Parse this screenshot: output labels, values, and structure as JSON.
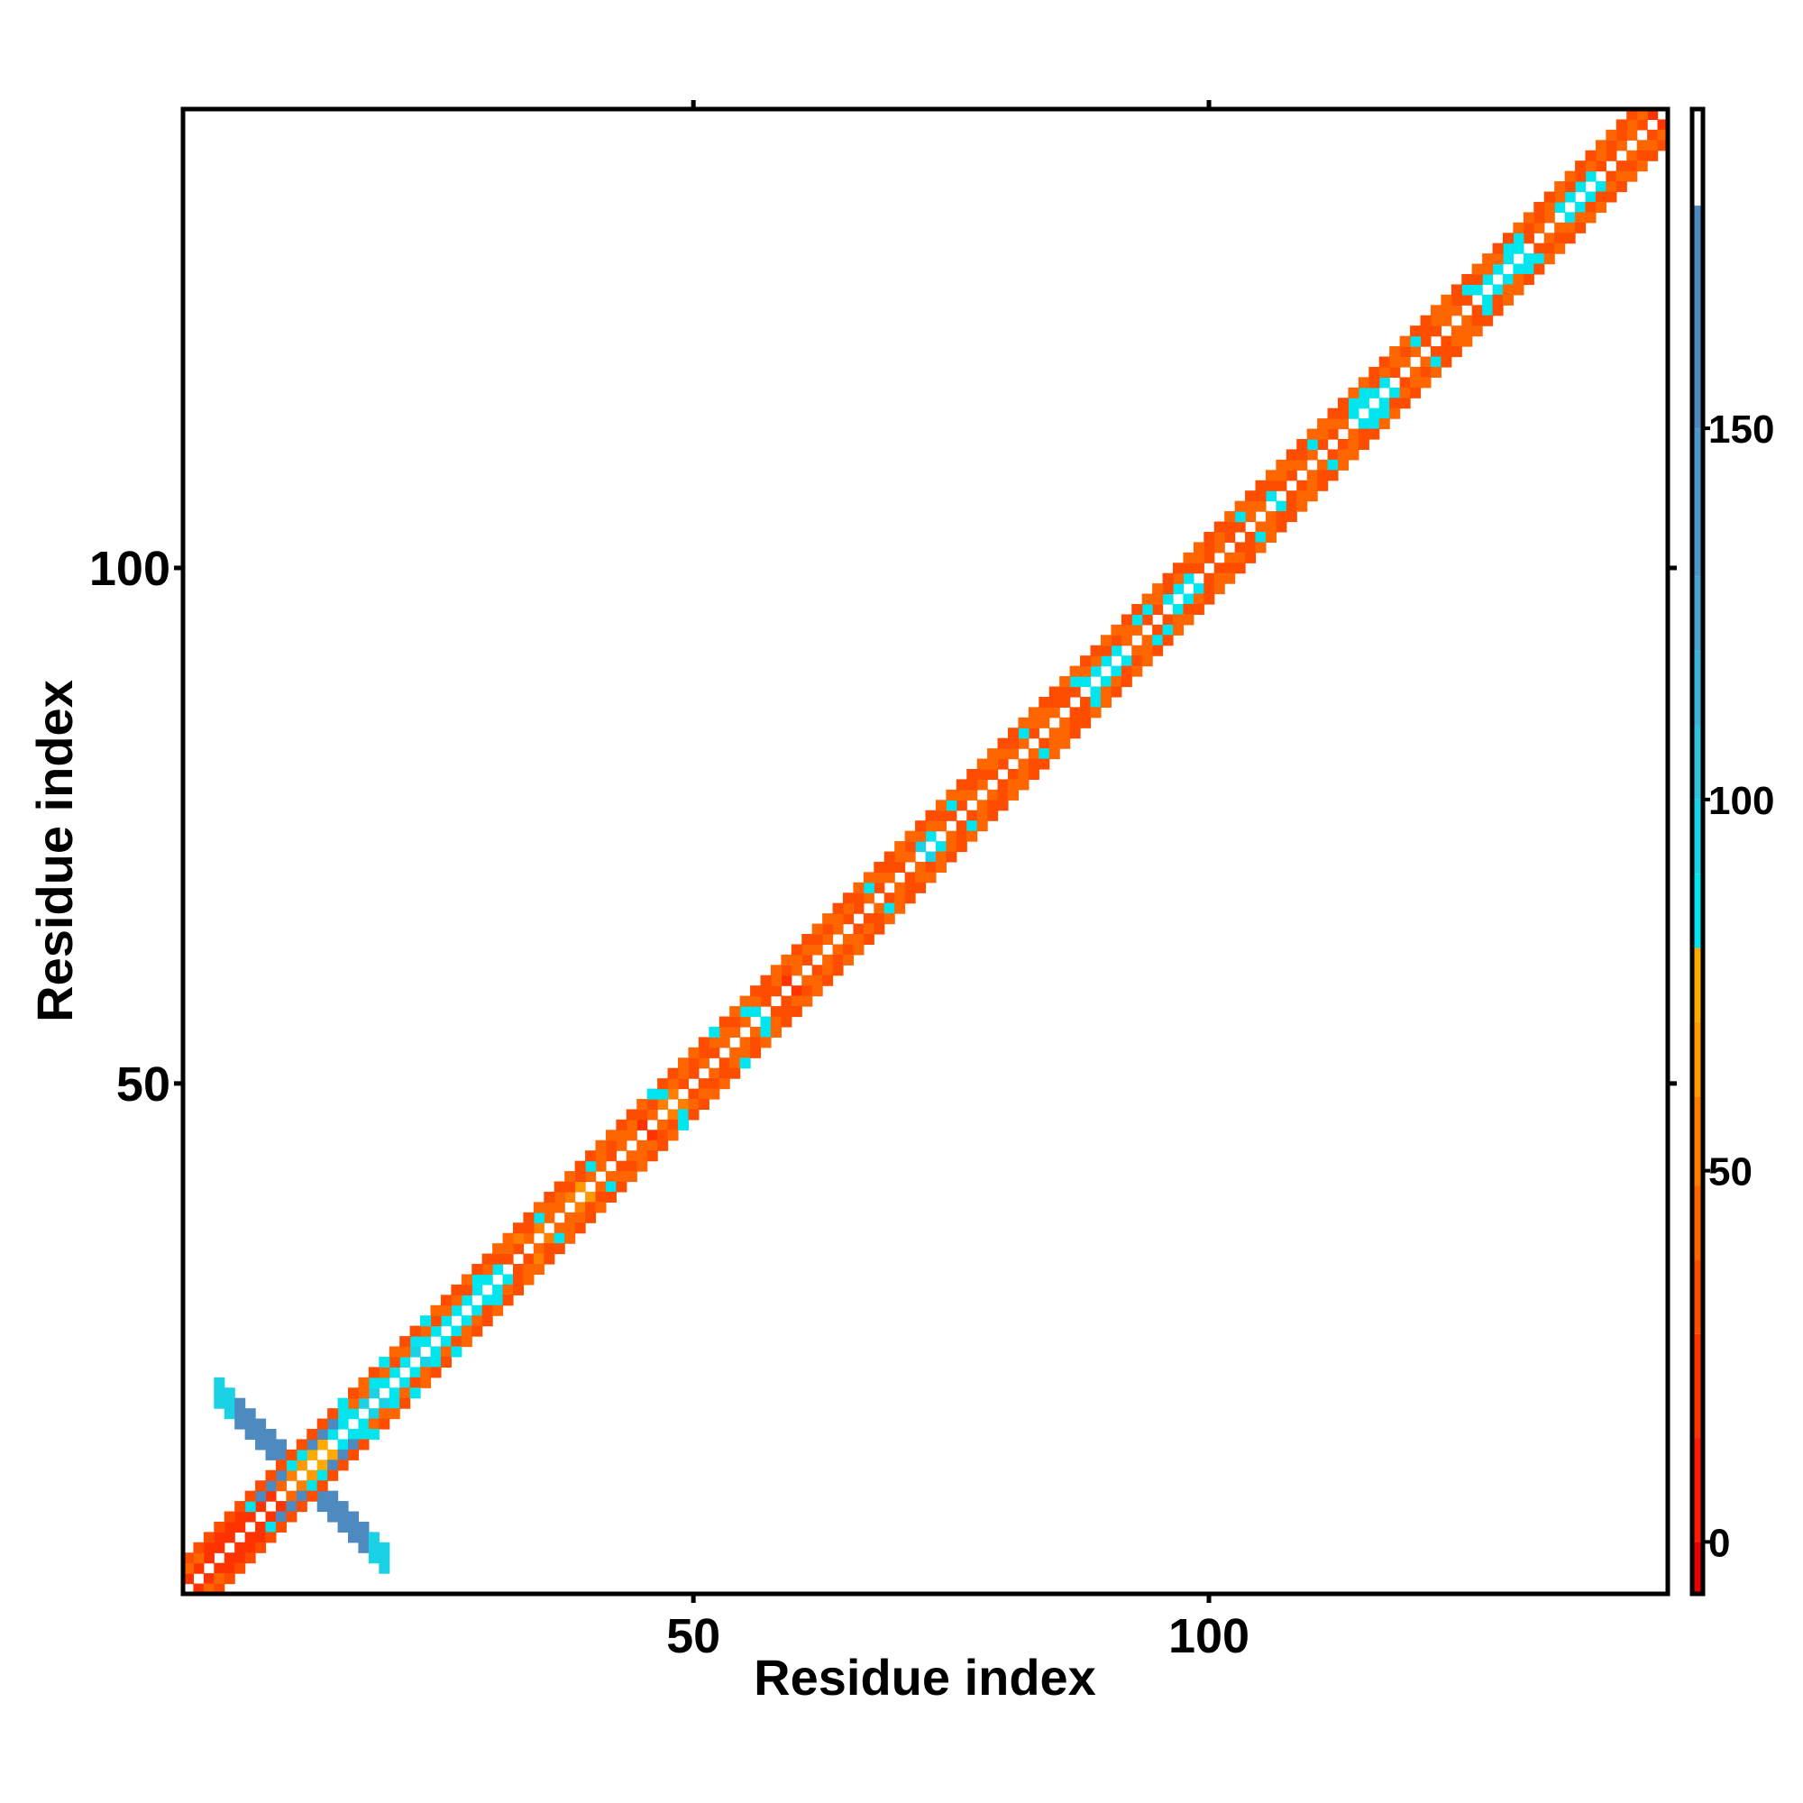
{
  "chart_data": {
    "type": "heatmap",
    "title": "",
    "xlabel": "Residue index",
    "ylabel": "Residue index",
    "xlim": [
      1,
      144
    ],
    "ylim": [
      1,
      144
    ],
    "xticks": [
      50,
      100
    ],
    "yticks": [
      50,
      100
    ],
    "grid": false,
    "matrix": "symmetric contact map; cells within 3 residues of the diagonal are colored, diagonal itself blank; extra off-diagonal cross block near residues 4-20",
    "band_values": {
      "offset_1": [
        14,
        14,
        14,
        14,
        14,
        14,
        14,
        18,
        24,
        38,
        50,
        64,
        70,
        74,
        80,
        84,
        88,
        92,
        90,
        86,
        84,
        88,
        90,
        86,
        84,
        86,
        84,
        88,
        86,
        84,
        82,
        30,
        28,
        44,
        50,
        38,
        44,
        52,
        60,
        42,
        38,
        30,
        46,
        40,
        22,
        40,
        52,
        48,
        36,
        30,
        44,
        36,
        38,
        46,
        40,
        86,
        32,
        36,
        22,
        46,
        36,
        40,
        38,
        44,
        36,
        30,
        40,
        36,
        44,
        28,
        42,
        90,
        86,
        40,
        36,
        30,
        44,
        40,
        36,
        30,
        44,
        40,
        30,
        44,
        40,
        36,
        30,
        86,
        88,
        86,
        84,
        44,
        40,
        36,
        30,
        86,
        88,
        86,
        36,
        30,
        44,
        36,
        30,
        44,
        40,
        86,
        36,
        30,
        44,
        40,
        36,
        30,
        44,
        86,
        88,
        84,
        86,
        36,
        40,
        44,
        30,
        36,
        44,
        40,
        30,
        86,
        88,
        86,
        84,
        86,
        30,
        44,
        40,
        86,
        88,
        86,
        84,
        36,
        30,
        44,
        40,
        36
      ],
      "offset_2": [
        44,
        44,
        14,
        14,
        14,
        14,
        86,
        150,
        150,
        150,
        86,
        86,
        150,
        150,
        150,
        86,
        44,
        40,
        86,
        40,
        36,
        44,
        86,
        40,
        36,
        44,
        40,
        30,
        86,
        40,
        36,
        44,
        50,
        36,
        86,
        40,
        44,
        30,
        36,
        86,
        40,
        36,
        44,
        40,
        36,
        30,
        86,
        40,
        44,
        36,
        30,
        40,
        44,
        36,
        86,
        40,
        30,
        44,
        36,
        40,
        44,
        36,
        30,
        40,
        44,
        36,
        86,
        40,
        30,
        44,
        36,
        40,
        44,
        30,
        86,
        40,
        36,
        30,
        44,
        40,
        36,
        86,
        44,
        40,
        30,
        36,
        86,
        40,
        44,
        36,
        30,
        40,
        86,
        86,
        40,
        36,
        44,
        30,
        40,
        36,
        44,
        30,
        86,
        40,
        36,
        30,
        44,
        40,
        36,
        86,
        44,
        40,
        30,
        86,
        86,
        36,
        40,
        44,
        30,
        86,
        36,
        40,
        44,
        30,
        86,
        36,
        40,
        44,
        86,
        86,
        30,
        36,
        40,
        44,
        30,
        36,
        40,
        44,
        30,
        36,
        40,
        44
      ],
      "offset_3": [
        30,
        30,
        30,
        30,
        30,
        30,
        30,
        30,
        30,
        30,
        30,
        30,
        30,
        30,
        30,
        86,
        30,
        40,
        36,
        86,
        40,
        30,
        36,
        86,
        40,
        30,
        36,
        40,
        30,
        36,
        40,
        44,
        30,
        36,
        40,
        30,
        36,
        44,
        30,
        36,
        40,
        44,
        30,
        36,
        40,
        86,
        36,
        30,
        44,
        40,
        36,
        86,
        30,
        40,
        44,
        36,
        30,
        40,
        44,
        36,
        30,
        40,
        44,
        36,
        30,
        40,
        44,
        36,
        30,
        40,
        44,
        36,
        30,
        40,
        44,
        36,
        30,
        40,
        44,
        36,
        30,
        40,
        44,
        36,
        30,
        40,
        44,
        36,
        30,
        40,
        44,
        36,
        30,
        40,
        44,
        36,
        30,
        40,
        44,
        36,
        30,
        40,
        44,
        36,
        30,
        40,
        44,
        36,
        30,
        40,
        44,
        36,
        30,
        40,
        44,
        36,
        30,
        40,
        44,
        36,
        30,
        40,
        44,
        36,
        30,
        40,
        44,
        36,
        30,
        40,
        44,
        36,
        30,
        40,
        44,
        36,
        30,
        40,
        44,
        36,
        30
      ]
    },
    "cross_block": {
      "center": 12,
      "half_width": 8,
      "value": 150
    },
    "colorbar": {
      "ticks": [
        0,
        50,
        100,
        150
      ],
      "range": [
        -7,
        193
      ],
      "bins": [
        {
          "from": -7,
          "to": 0,
          "color": "#e60000"
        },
        {
          "from": 0,
          "to": 14,
          "color": "#ff1a00"
        },
        {
          "from": 14,
          "to": 28,
          "color": "#ff3300"
        },
        {
          "from": 28,
          "to": 38,
          "color": "#ff4d00"
        },
        {
          "from": 38,
          "to": 48,
          "color": "#ff6600"
        },
        {
          "from": 48,
          "to": 60,
          "color": "#ff8000"
        },
        {
          "from": 60,
          "to": 70,
          "color": "#ff9900"
        },
        {
          "from": 70,
          "to": 80,
          "color": "#ffaa00"
        },
        {
          "from": 80,
          "to": 90,
          "color": "#00e5ee"
        },
        {
          "from": 90,
          "to": 100,
          "color": "#1ad1e6"
        },
        {
          "from": 100,
          "to": 110,
          "color": "#33c1e0"
        },
        {
          "from": 110,
          "to": 120,
          "color": "#3db3d8"
        },
        {
          "from": 120,
          "to": 130,
          "color": "#45a5d0"
        },
        {
          "from": 130,
          "to": 150,
          "color": "#4a97c8"
        },
        {
          "from": 150,
          "to": 180,
          "color": "#4d8ac0"
        },
        {
          "from": 180,
          "to": 193,
          "color": "#ffffff"
        }
      ]
    }
  }
}
